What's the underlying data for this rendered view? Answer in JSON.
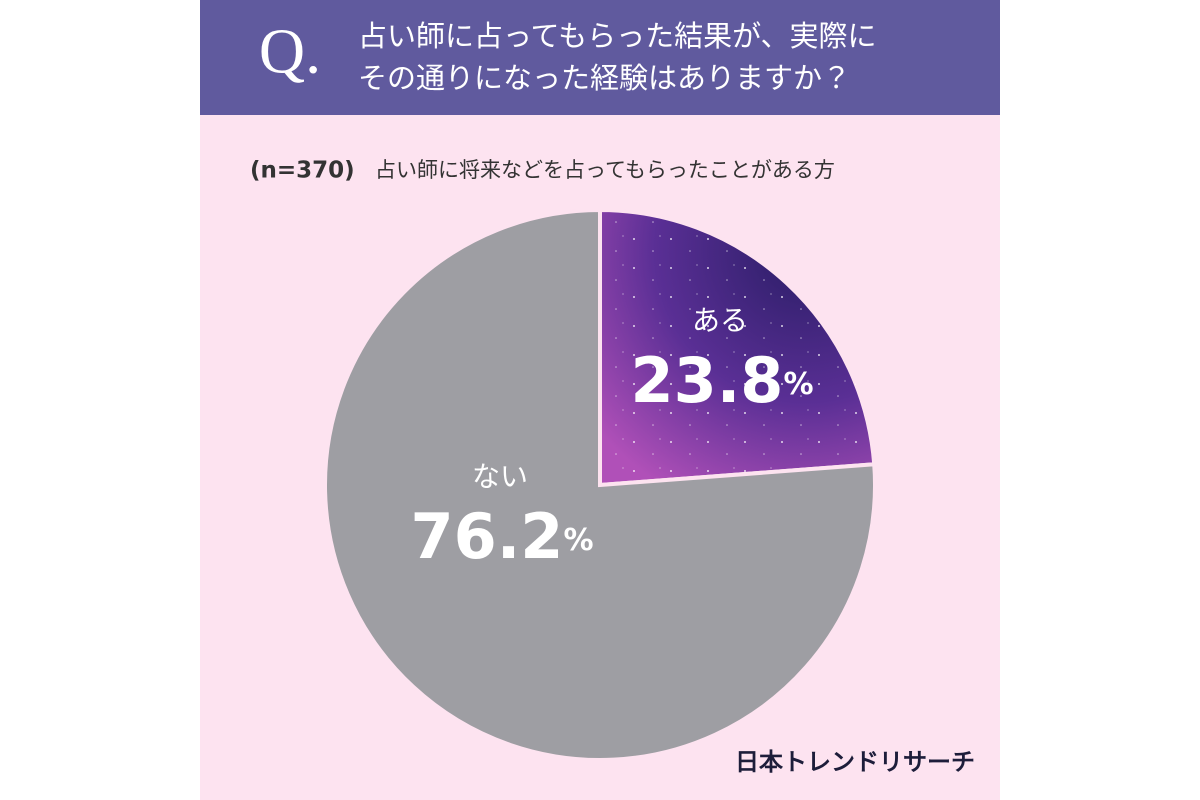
{
  "header": {
    "mark": "Q.",
    "question": [
      "占い師に占ってもらった結果が、実際に",
      "その通りになった経験はありますか？"
    ]
  },
  "chart_data": {
    "type": "pie",
    "subtitle": {
      "sample": "(n=370)",
      "respondents": "占い師に将来などを占ってもらったことがある方"
    },
    "categories": [
      "ある",
      "ない"
    ],
    "values": [
      23.8,
      76.2
    ],
    "value_labels": [
      "23.8%",
      "76.2%"
    ],
    "colors": [
      "#4b2f8c",
      "#9e9ea3"
    ]
  },
  "footer": {
    "brand": "日本トレンドリサーチ"
  }
}
